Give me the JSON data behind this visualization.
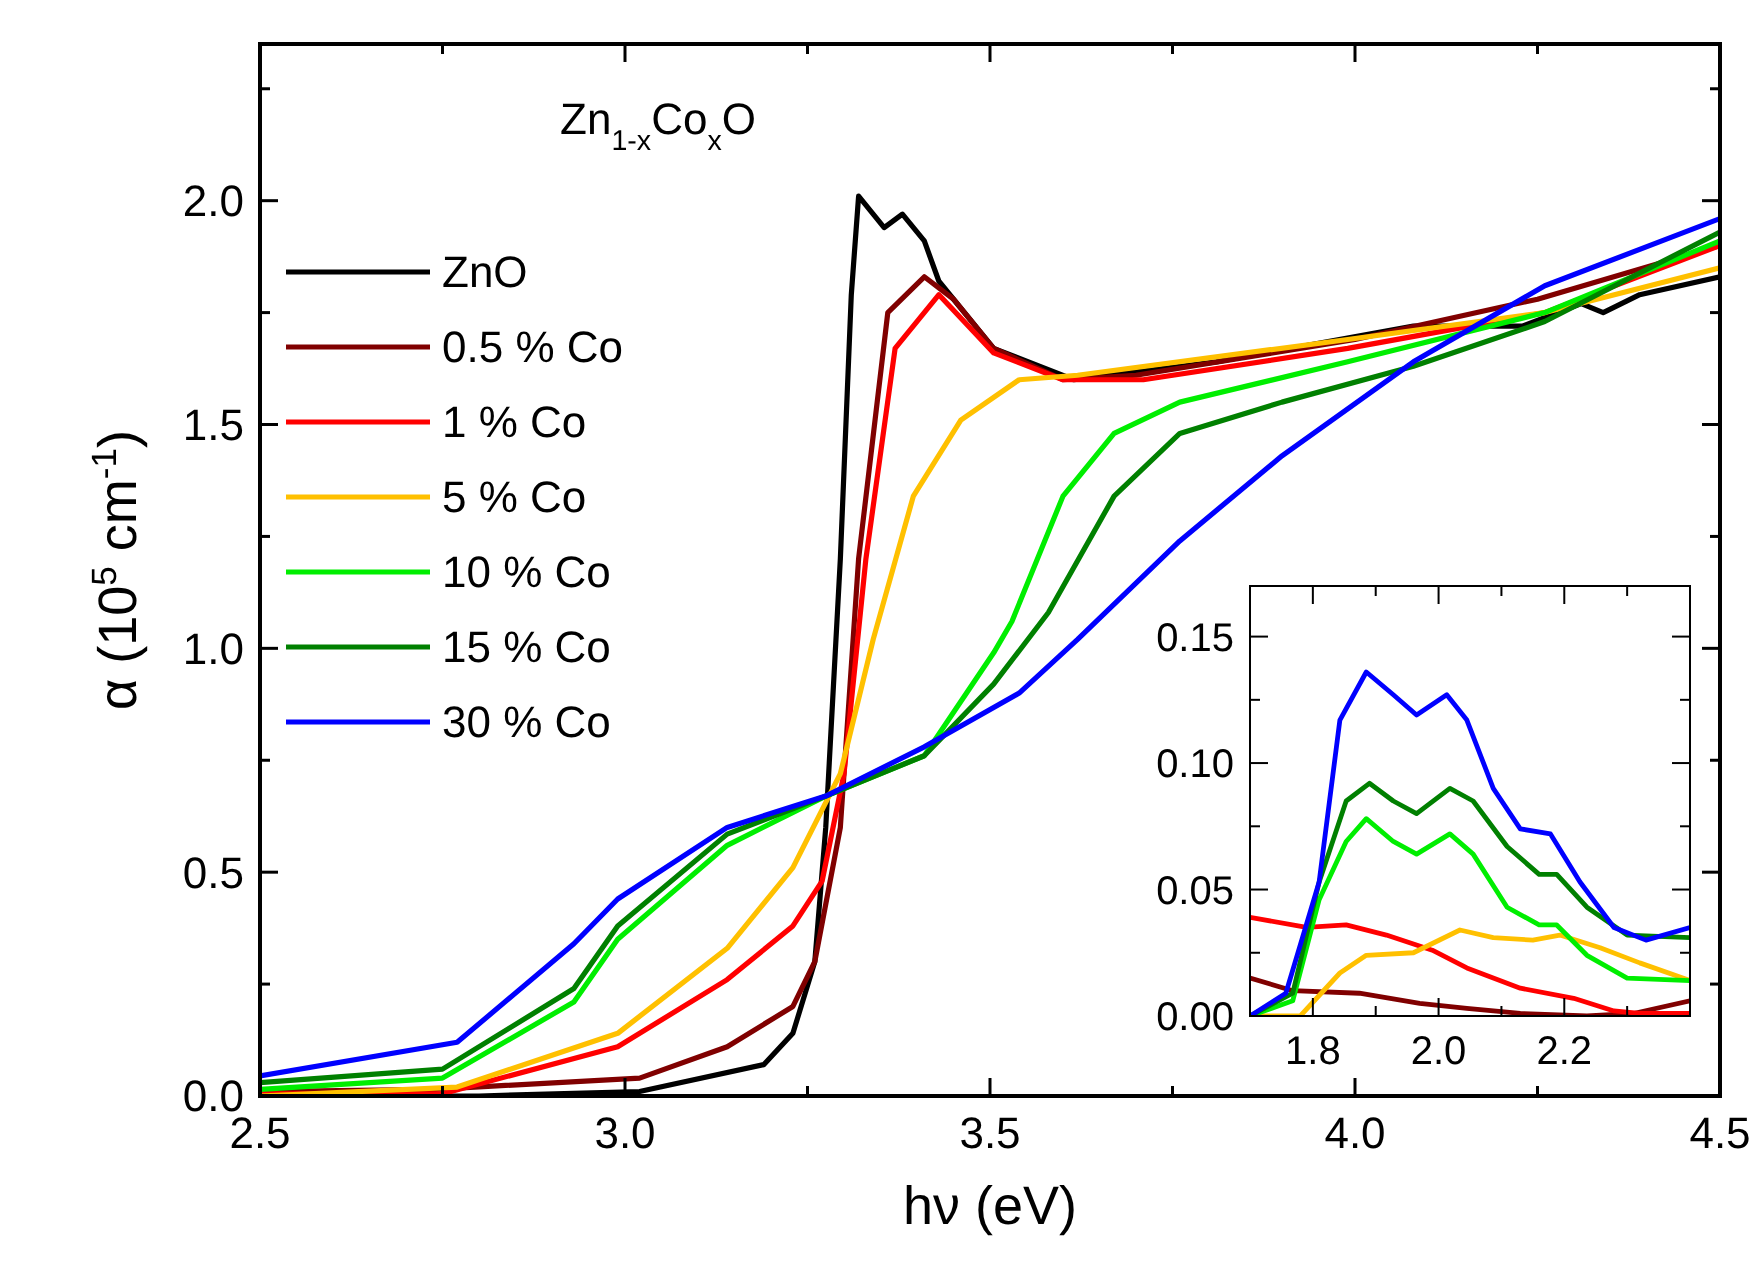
{
  "chart_data": [
    {
      "type": "line",
      "title": "Zn$_{1-x}$Co$_{x}$O",
      "xlabel": "hν (eV)",
      "ylabel": "α (10$^{5}$ cm$^{-1}$)",
      "legend": "top left",
      "xlim": [
        2.5,
        4.5
      ],
      "ylim": [
        0,
        2.35
      ],
      "xticks": [
        {
          "value": 2.5,
          "label": "2.5"
        },
        {
          "value": 2.75,
          "label": null
        },
        {
          "value": 3,
          "label": "3.0"
        },
        {
          "value": 3.25,
          "label": null
        },
        {
          "value": 3.5,
          "label": "3.5"
        },
        {
          "value": 3.75,
          "label": null
        },
        {
          "value": 4,
          "label": "4.0"
        },
        {
          "value": 4.25,
          "label": null
        },
        {
          "value": 4.5,
          "label": "4.5"
        }
      ],
      "yticks": [
        {
          "value": 0,
          "label": "0.0"
        },
        {
          "value": 0.25,
          "label": null
        },
        {
          "value": 0.5,
          "label": "0.5"
        },
        {
          "value": 0.75,
          "label": null
        },
        {
          "value": 1,
          "label": "1.0"
        },
        {
          "value": 1.25,
          "label": null
        },
        {
          "value": 1.5,
          "label": "1.5"
        },
        {
          "value": 1.75,
          "label": null
        },
        {
          "value": 2,
          "label": "2.0"
        },
        {
          "value": 2.25,
          "label": null
        }
      ],
      "series": [
        {
          "name": "ZnO",
          "color": "#000000",
          "x": [
            2.5,
            2.8,
            3.02,
            3.19,
            3.23,
            3.26,
            3.275,
            3.295,
            3.31,
            3.32,
            3.355,
            3.38,
            3.41,
            3.43,
            3.505,
            3.615,
            3.81,
            4.08,
            4.17,
            4.23,
            4.31,
            4.34,
            4.39,
            4.5
          ],
          "values": [
            0.0,
            0.0,
            0.01,
            0.07,
            0.14,
            0.3,
            0.6,
            1.2,
            1.79,
            2.01,
            1.94,
            1.97,
            1.91,
            1.82,
            1.67,
            1.6,
            1.64,
            1.72,
            1.72,
            1.72,
            1.77,
            1.75,
            1.79,
            1.83
          ]
        },
        {
          "name": "0.5 % Co",
          "color": "#800000",
          "x": [
            2.5,
            2.74,
            3.02,
            3.14,
            3.23,
            3.26,
            3.295,
            3.32,
            3.36,
            3.41,
            3.45,
            3.505,
            3.6,
            3.7,
            4.0,
            4.25,
            4.5
          ],
          "values": [
            0.01,
            0.015,
            0.04,
            0.11,
            0.2,
            0.3,
            0.6,
            1.2,
            1.75,
            1.83,
            1.78,
            1.67,
            1.6,
            1.61,
            1.69,
            1.78,
            1.9
          ]
        },
        {
          "name": "1 % Co",
          "color": "#ff0000",
          "x": [
            2.5,
            2.75,
            2.99,
            3.14,
            3.23,
            3.27,
            3.3,
            3.33,
            3.37,
            3.43,
            3.505,
            3.6,
            3.71,
            3.99,
            4.26,
            4.5
          ],
          "values": [
            0.005,
            0.005,
            0.11,
            0.26,
            0.38,
            0.48,
            0.72,
            1.2,
            1.67,
            1.79,
            1.66,
            1.6,
            1.6,
            1.67,
            1.75,
            1.9
          ]
        },
        {
          "name": "5 % Co",
          "color": "#ffc000",
          "x": [
            2.5,
            2.77,
            2.99,
            3.14,
            3.23,
            3.295,
            3.34,
            3.395,
            3.46,
            3.54,
            3.62,
            3.99,
            4.26,
            4.5
          ],
          "values": [
            0.0,
            0.02,
            0.14,
            0.33,
            0.51,
            0.72,
            1.02,
            1.34,
            1.51,
            1.6,
            1.61,
            1.69,
            1.75,
            1.85
          ]
        },
        {
          "name": "10 % Co",
          "color": "#00ee00",
          "x": [
            2.5,
            2.75,
            2.93,
            2.99,
            3.14,
            3.275,
            3.41,
            3.505,
            3.53,
            3.6,
            3.67,
            3.76,
            3.99,
            4.26,
            4.5
          ],
          "values": [
            0.015,
            0.04,
            0.21,
            0.35,
            0.56,
            0.67,
            0.76,
            0.99,
            1.06,
            1.34,
            1.48,
            1.55,
            1.64,
            1.75,
            1.91
          ]
        },
        {
          "name": "15 % Co",
          "color": "#008000",
          "x": [
            2.5,
            2.75,
            2.93,
            2.99,
            3.14,
            3.275,
            3.41,
            3.505,
            3.58,
            3.67,
            3.76,
            3.9,
            4.08,
            4.26,
            4.5
          ],
          "values": [
            0.03,
            0.06,
            0.24,
            0.38,
            0.585,
            0.67,
            0.76,
            0.92,
            1.08,
            1.34,
            1.48,
            1.55,
            1.63,
            1.73,
            1.93
          ]
        },
        {
          "name": "30 % Co",
          "color": "#0000ff",
          "x": [
            2.5,
            2.77,
            2.93,
            2.99,
            3.14,
            3.275,
            3.41,
            3.54,
            3.62,
            3.76,
            3.9,
            4.08,
            4.26,
            4.5
          ],
          "values": [
            0.045,
            0.12,
            0.34,
            0.44,
            0.6,
            0.67,
            0.78,
            0.9,
            1.02,
            1.24,
            1.43,
            1.64,
            1.81,
            1.96
          ]
        }
      ]
    },
    {
      "type": "line",
      "xlim": [
        1.7,
        2.4
      ],
      "ylim": [
        0,
        0.17
      ],
      "xticks": [
        {
          "value": 1.8,
          "label": "1.8"
        },
        {
          "value": 1.9,
          "label": null
        },
        {
          "value": 2,
          "label": "2.0"
        },
        {
          "value": 2.1,
          "label": null
        },
        {
          "value": 2.2,
          "label": "2.2"
        },
        {
          "value": 2.3,
          "label": null
        }
      ],
      "yticks": [
        {
          "value": 0,
          "label": "0.00"
        },
        {
          "value": 0.025,
          "label": null
        },
        {
          "value": 0.05,
          "label": "0.05"
        },
        {
          "value": 0.075,
          "label": null
        },
        {
          "value": 0.1,
          "label": "0.10"
        },
        {
          "value": 0.125,
          "label": null
        },
        {
          "value": 0.15,
          "label": "0.15"
        }
      ],
      "series": [
        {
          "color": "#800000",
          "x": [
            1.7,
            1.768,
            1.874,
            1.97,
            2.045,
            2.13,
            2.236,
            2.31,
            2.4
          ],
          "values": [
            0.015,
            0.01,
            0.009,
            0.005,
            0.003,
            0.001,
            0.0,
            0.001,
            0.006
          ]
        },
        {
          "color": "#ff0000",
          "x": [
            1.7,
            1.79,
            1.853,
            1.917,
            1.99,
            2.045,
            2.13,
            2.215,
            2.279,
            2.32,
            2.4
          ],
          "values": [
            0.039,
            0.035,
            0.036,
            0.032,
            0.026,
            0.019,
            0.011,
            0.007,
            0.002,
            0.001,
            0.001
          ]
        },
        {
          "color": "#ffc000",
          "x": [
            1.7,
            1.78,
            1.843,
            1.885,
            1.96,
            2.034,
            2.087,
            2.15,
            2.193,
            2.257,
            2.32,
            2.4
          ],
          "values": [
            0.0,
            0.0,
            0.017,
            0.024,
            0.025,
            0.034,
            0.031,
            0.03,
            0.032,
            0.027,
            0.021,
            0.014
          ]
        },
        {
          "color": "#00ee00",
          "x": [
            1.7,
            1.768,
            1.81,
            1.853,
            1.885,
            1.928,
            1.965,
            2.018,
            2.055,
            2.109,
            2.16,
            2.188,
            2.236,
            2.3,
            2.4
          ],
          "values": [
            0.0,
            0.006,
            0.046,
            0.069,
            0.078,
            0.069,
            0.064,
            0.072,
            0.064,
            0.043,
            0.036,
            0.036,
            0.024,
            0.015,
            0.014
          ]
        },
        {
          "color": "#008000",
          "x": [
            1.7,
            1.768,
            1.81,
            1.853,
            1.89,
            1.928,
            1.965,
            2.018,
            2.055,
            2.109,
            2.16,
            2.188,
            2.236,
            2.3,
            2.4
          ],
          "values": [
            0.0,
            0.009,
            0.053,
            0.085,
            0.092,
            0.085,
            0.08,
            0.09,
            0.085,
            0.067,
            0.056,
            0.056,
            0.043,
            0.032,
            0.031
          ]
        },
        {
          "color": "#0000ff",
          "x": [
            1.7,
            1.757,
            1.81,
            1.843,
            1.885,
            1.928,
            1.965,
            2.013,
            2.045,
            2.087,
            2.13,
            2.178,
            2.225,
            2.279,
            2.33,
            2.4
          ],
          "values": [
            0.0,
            0.009,
            0.053,
            0.117,
            0.136,
            0.127,
            0.119,
            0.127,
            0.117,
            0.09,
            0.074,
            0.072,
            0.053,
            0.035,
            0.03,
            0.035
          ]
        }
      ]
    }
  ]
}
